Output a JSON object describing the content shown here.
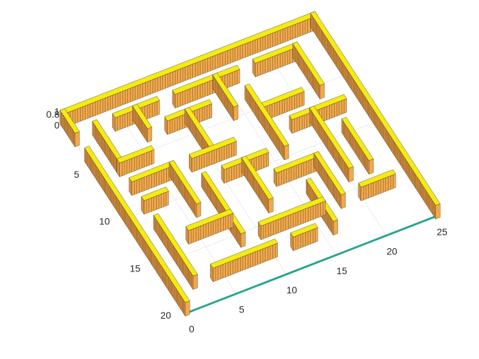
{
  "chart_data": {
    "type": "surface",
    "title": "",
    "xlabel": "",
    "ylabel": "",
    "zlabel": "",
    "xlim": [
      0,
      25
    ],
    "ylim": [
      0,
      20
    ],
    "zlim": [
      0,
      1
    ],
    "x_ticks": [
      "0",
      "5",
      "10",
      "15",
      "20",
      "25"
    ],
    "y_ticks": [
      "5",
      "10",
      "15",
      "20"
    ],
    "z_ticks": [
      "0",
      "0.8",
      "1"
    ],
    "grid": true,
    "colormap": "parula",
    "colors": {
      "top": "#f5ea14",
      "top_mid": "#e8c83a",
      "side": "#f2a94a",
      "side_dark": "#d98f3c",
      "floor_edge": "#2bb3a0",
      "grid": "#e6e6e6",
      "axis": "#262626"
    },
    "description_series": [
      {
        "values": [
          [
            0,
            0,
            25,
            0
          ],
          [
            25,
            0,
            25,
            20
          ],
          [
            0,
            0,
            0,
            2
          ],
          [
            2,
            2,
            2,
            6
          ],
          [
            2,
            6,
            5,
            6
          ],
          [
            4,
            2,
            8,
            2
          ],
          [
            6,
            2,
            6,
            4
          ],
          [
            10,
            2,
            16,
            2
          ],
          [
            14,
            2,
            14,
            5
          ],
          [
            18,
            2,
            22,
            2
          ],
          [
            22,
            2,
            22,
            6
          ],
          [
            2,
            8,
            6,
            8
          ],
          [
            6,
            8,
            6,
            12
          ],
          [
            8,
            4,
            12,
            4
          ],
          [
            10,
            4,
            10,
            8
          ],
          [
            8,
            8,
            12,
            8
          ],
          [
            16,
            4,
            16,
            10
          ],
          [
            16,
            6,
            20,
            6
          ],
          [
            18,
            8,
            23,
            8
          ],
          [
            20,
            8,
            20,
            14
          ],
          [
            2,
            10,
            4,
            10
          ],
          [
            2,
            12,
            2,
            18
          ],
          [
            4,
            14,
            8,
            14
          ],
          [
            8,
            10,
            8,
            16
          ],
          [
            10,
            10,
            14,
            10
          ],
          [
            12,
            10,
            12,
            14
          ],
          [
            14,
            12,
            18,
            12
          ],
          [
            18,
            12,
            18,
            16
          ],
          [
            10,
            16,
            16,
            16
          ],
          [
            16,
            14,
            16,
            18
          ],
          [
            4,
            18,
            10,
            18
          ],
          [
            20,
            16,
            23,
            16
          ],
          [
            22,
            10,
            22,
            14
          ],
          [
            12,
            18,
            14,
            18
          ],
          [
            0,
            4,
            0,
            20
          ]
        ]
      }
    ]
  }
}
